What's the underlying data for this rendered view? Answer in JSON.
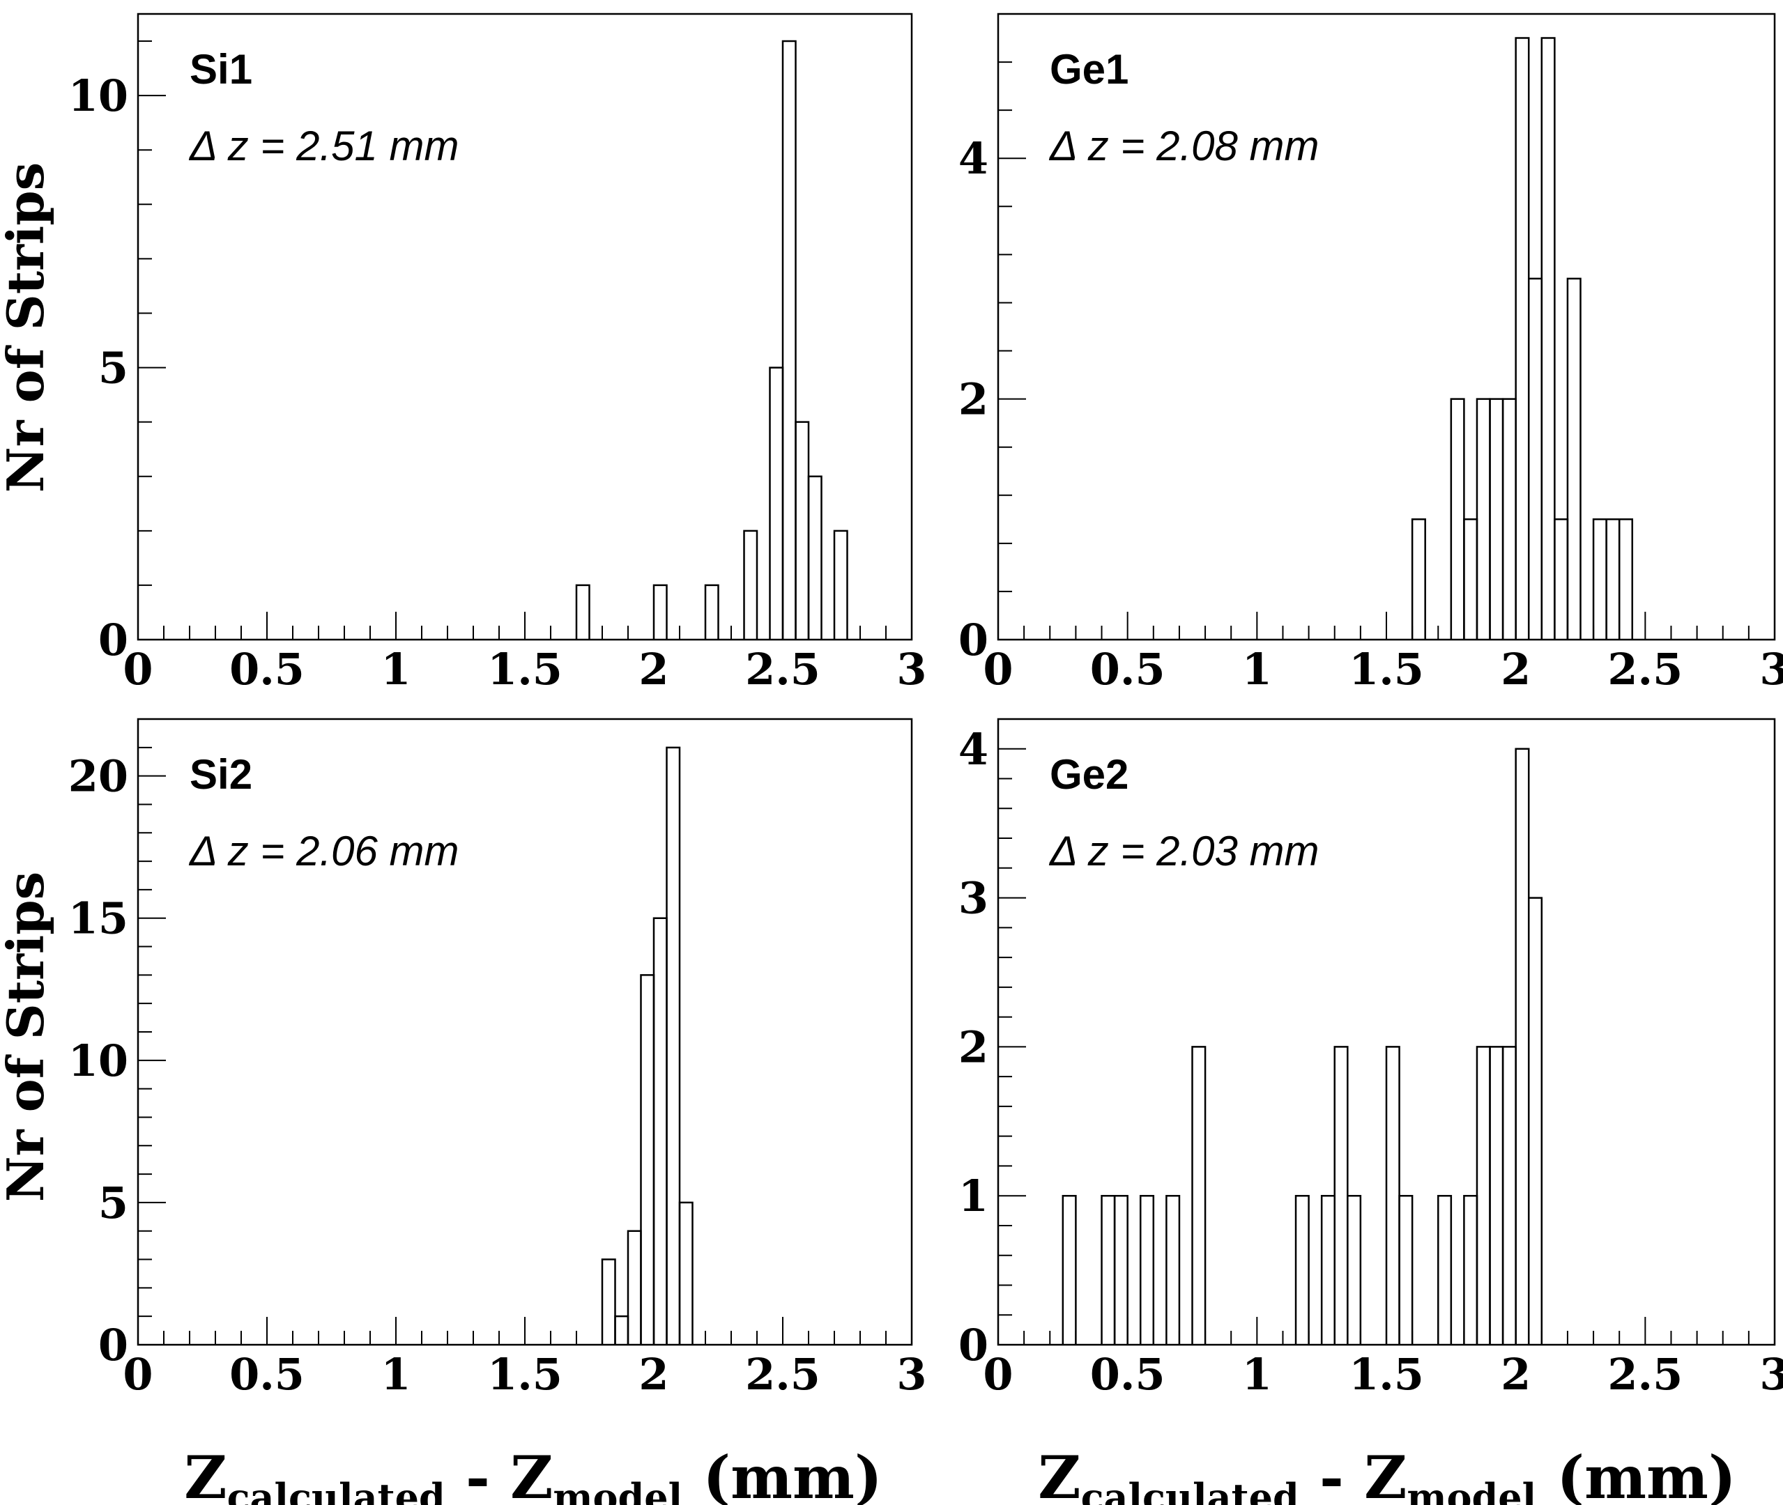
{
  "figure": {
    "ylabel": "Nr of Strips",
    "xlabel_main": "Z",
    "xlabel_sub1": "calculated",
    "xlabel_mid": " - Z",
    "xlabel_sub2": "model",
    "xlabel_unit": " (mm)"
  },
  "chart_data": [
    {
      "type": "bar",
      "histogram": true,
      "title": "Si1",
      "annotation": "Δ z = 2.51 mm",
      "xlim": [
        0,
        3
      ],
      "ylim": [
        0,
        11.5
      ],
      "xticks": [
        "0",
        "0.5",
        "1",
        "1.5",
        "2",
        "2.5",
        "3"
      ],
      "yticks": [
        "0",
        "5",
        "10"
      ],
      "bin_width": 0.05,
      "x_bin_starts": [
        1.7,
        2.0,
        2.2,
        2.35,
        2.45,
        2.5,
        2.55,
        2.6,
        2.7
      ],
      "values": [
        1,
        1,
        1,
        2,
        5,
        11,
        4,
        3,
        2
      ]
    },
    {
      "type": "bar",
      "histogram": true,
      "title": "Ge1",
      "annotation": "Δ z = 2.08 mm",
      "xlim": [
        0,
        3
      ],
      "ylim": [
        0,
        5.2
      ],
      "xticks": [
        "0",
        "0.5",
        "1",
        "1.5",
        "2",
        "2.5",
        "3"
      ],
      "yticks": [
        "0",
        "2",
        "4"
      ],
      "bin_width": 0.05,
      "x_bin_starts": [
        1.6,
        1.75,
        1.8,
        1.85,
        1.9,
        1.95,
        2.0,
        2.05,
        2.1,
        2.15,
        2.2,
        2.3,
        2.35,
        2.4
      ],
      "values": [
        1,
        2,
        1,
        2,
        2,
        2,
        5,
        3,
        5,
        1,
        3,
        1,
        1,
        1
      ]
    },
    {
      "type": "bar",
      "histogram": true,
      "title": "Si2",
      "annotation": "Δ z = 2.06 mm",
      "xlim": [
        0,
        3
      ],
      "ylim": [
        0,
        22
      ],
      "xticks": [
        "0",
        "0.5",
        "1",
        "1.5",
        "2",
        "2.5",
        "3"
      ],
      "yticks": [
        "0",
        "5",
        "10",
        "15",
        "20"
      ],
      "bin_width": 0.05,
      "x_bin_starts": [
        1.8,
        1.85,
        1.9,
        1.95,
        2.0,
        2.05,
        2.1
      ],
      "values": [
        3,
        1,
        4,
        13,
        15,
        21,
        5
      ]
    },
    {
      "type": "bar",
      "histogram": true,
      "title": "Ge2",
      "annotation": "Δ z = 2.03 mm",
      "xlim": [
        0,
        3
      ],
      "ylim": [
        0,
        4.2
      ],
      "xticks": [
        "0",
        "0.5",
        "1",
        "1.5",
        "2",
        "2.5",
        "3"
      ],
      "yticks": [
        "0",
        "1",
        "2",
        "3",
        "4"
      ],
      "bin_width": 0.05,
      "x_bin_starts": [
        0.25,
        0.4,
        0.45,
        0.55,
        0.65,
        0.75,
        1.15,
        1.25,
        1.3,
        1.35,
        1.5,
        1.55,
        1.7,
        1.8,
        1.85,
        1.9,
        1.95,
        2.0,
        2.05
      ],
      "values": [
        1,
        1,
        1,
        1,
        1,
        2,
        1,
        1,
        2,
        1,
        2,
        1,
        1,
        1,
        2,
        2,
        2,
        4,
        3
      ]
    }
  ]
}
